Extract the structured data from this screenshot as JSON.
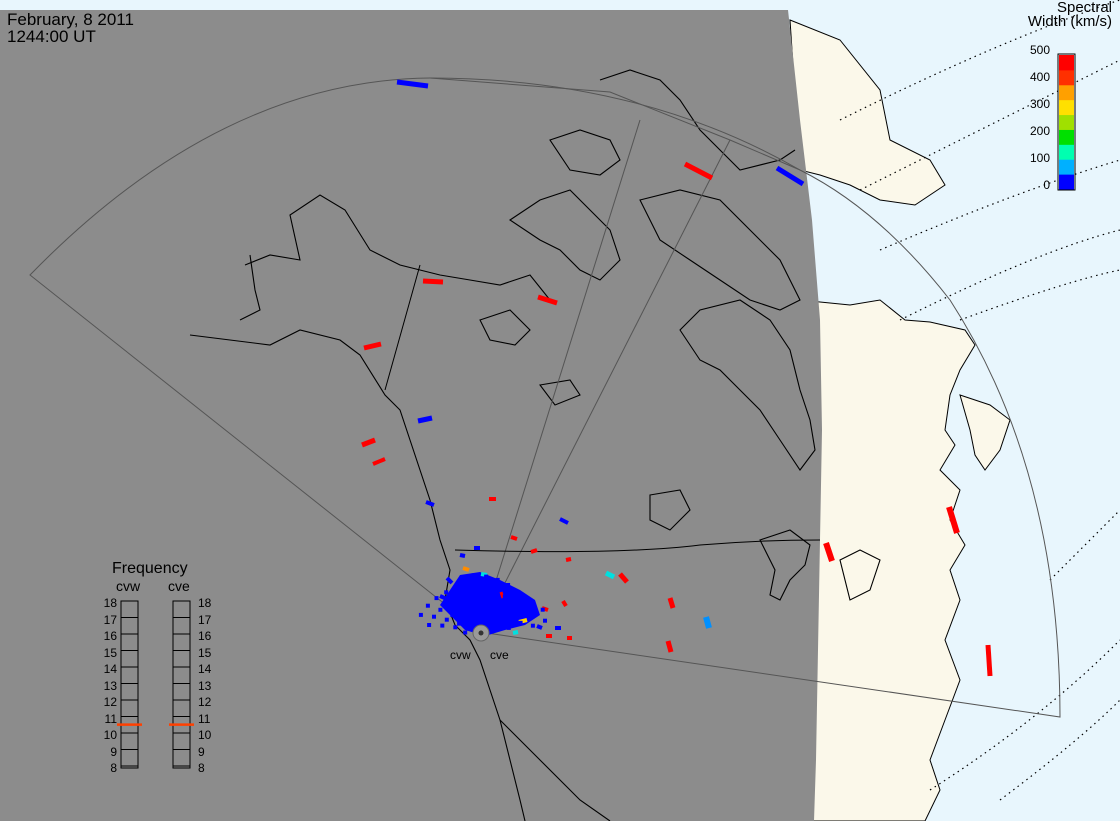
{
  "header": {
    "date": "February, 8 2011",
    "time": "1244:00 UT"
  },
  "colorbar": {
    "title_line1": "Spectral",
    "title_line2": "Width (km/s)",
    "ticks": [
      "500",
      "400",
      "300",
      "200",
      "100",
      "0"
    ],
    "colors": [
      "#0000ff",
      "#00b0ff",
      "#00ffb0",
      "#00e000",
      "#a0e000",
      "#ffe000",
      "#ffa000",
      "#ff3000",
      "#ff0000"
    ]
  },
  "frequency_panel": {
    "title": "Frequency",
    "columns": [
      "cvw",
      "cve"
    ],
    "ticks": [
      "18",
      "17",
      "16",
      "15",
      "14",
      "13",
      "12",
      "11",
      "10",
      "9",
      "8"
    ],
    "indicator_color": "#ff4000",
    "current_mhz": [
      10.6,
      10.6
    ]
  },
  "radars": [
    {
      "id": "cvw",
      "label": "cvw"
    },
    {
      "id": "cve",
      "label": "cve"
    }
  ],
  "colors": {
    "night": "#8c8c8c",
    "land_day": "#fbf8ea",
    "ocean_day": "#e8f6fd",
    "echo_low": "#0000ff",
    "echo_high": "#ff0000"
  }
}
